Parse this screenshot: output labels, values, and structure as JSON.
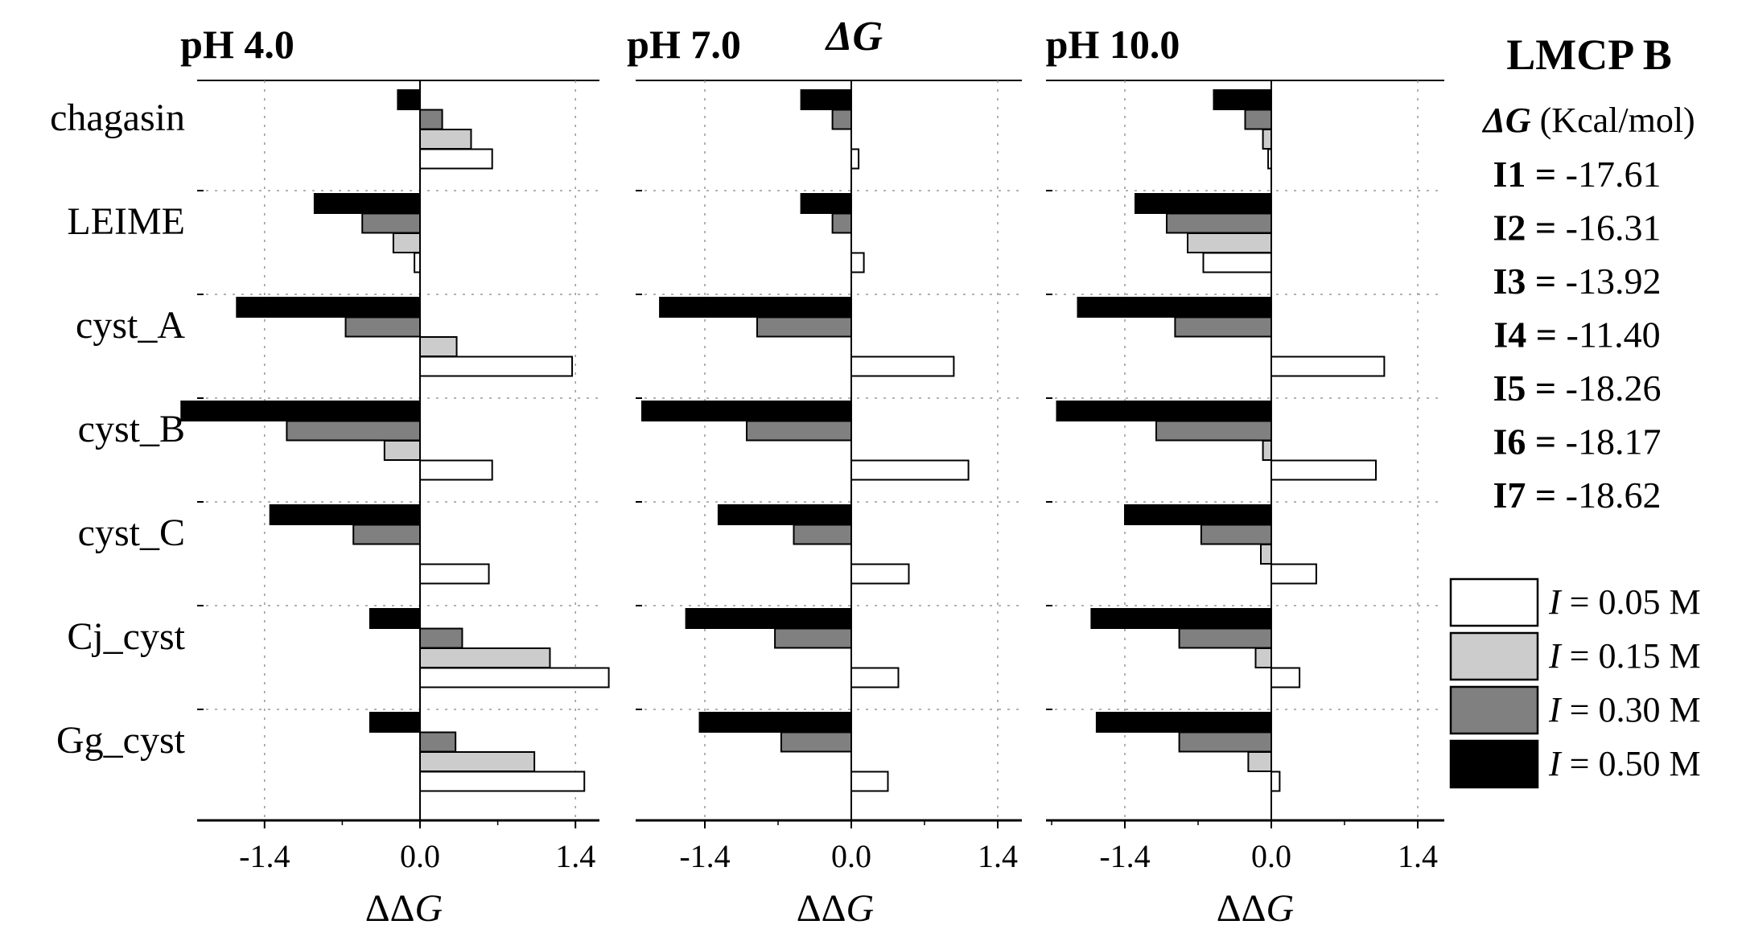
{
  "chart_data": {
    "type": "bar",
    "orientation": "horizontal",
    "title": "ΔG",
    "categories": [
      "chagasin",
      "LEIME",
      "cyst_A",
      "cyst_B",
      "cyst_C",
      "Cj_cyst",
      "Gg_cyst"
    ],
    "xlabel": "ΔΔG",
    "xlim": [
      -2.2,
      1.7
    ],
    "xticks": [
      -1.4,
      0.0,
      1.4
    ],
    "xtick_labels": [
      "-1.4",
      "0.0",
      "1.4"
    ],
    "legend_placement": "right",
    "legend": [
      "I = 0.05 M",
      "I = 0.15 M",
      "I = 0.30 M",
      "I = 0.50 M"
    ],
    "legend_parts": [
      {
        "symbol": "I",
        "text": " = 0.05 M"
      },
      {
        "symbol": "I",
        "text": " = 0.15 M"
      },
      {
        "symbol": "I",
        "text": " = 0.30 M"
      },
      {
        "symbol": "I",
        "text": " = 0.50 M"
      }
    ],
    "series_colors": [
      "#ffffff",
      "#cccccc",
      "#808080",
      "#000000"
    ],
    "panels": [
      {
        "title": "pH 4.0",
        "series": [
          {
            "name": "I = 0.50 M",
            "values": [
              -0.2,
              -0.95,
              -1.65,
              -2.15,
              -1.35,
              -0.45,
              -0.45
            ]
          },
          {
            "name": "I = 0.30 M",
            "values": [
              0.2,
              -0.52,
              -0.67,
              -1.2,
              -0.6,
              0.38,
              0.32
            ]
          },
          {
            "name": "I = 0.15 M",
            "values": [
              0.46,
              -0.24,
              0.33,
              -0.32,
              0.0,
              1.17,
              1.03
            ]
          },
          {
            "name": "I = 0.05 M",
            "values": [
              0.65,
              -0.05,
              1.37,
              0.65,
              0.62,
              1.7,
              1.48
            ]
          }
        ]
      },
      {
        "title": "pH 7.0",
        "series": [
          {
            "name": "I = 0.50 M",
            "values": [
              -0.48,
              -0.48,
              -1.83,
              -2.0,
              -1.27,
              -1.58,
              -1.45
            ]
          },
          {
            "name": "I = 0.30 M",
            "values": [
              -0.18,
              -0.18,
              -0.9,
              -1.0,
              -0.55,
              -0.73,
              -0.67
            ]
          },
          {
            "name": "I = 0.15 M",
            "values": [
              0.0,
              0.0,
              0.0,
              0.0,
              0.0,
              0.0,
              0.0
            ]
          },
          {
            "name": "I = 0.05 M",
            "values": [
              0.07,
              0.12,
              0.98,
              1.12,
              0.55,
              0.45,
              0.35
            ]
          }
        ]
      },
      {
        "title": "pH 10.0",
        "series": [
          {
            "name": "I = 0.50 M",
            "values": [
              -0.55,
              -1.3,
              -1.85,
              -2.05,
              -1.4,
              -1.72,
              -1.67
            ]
          },
          {
            "name": "I = 0.30 M",
            "values": [
              -0.25,
              -1.0,
              -0.92,
              -1.1,
              -0.67,
              -0.88,
              -0.88
            ]
          },
          {
            "name": "I = 0.15 M",
            "values": [
              -0.08,
              -0.8,
              0.0,
              -0.08,
              -0.1,
              -0.15,
              -0.22
            ]
          },
          {
            "name": "I = 0.05 M",
            "values": [
              -0.03,
              -0.65,
              1.08,
              1.0,
              0.43,
              0.27,
              0.08
            ]
          }
        ]
      }
    ]
  },
  "side_panel": {
    "title": "LMCP B",
    "unit_symbol": "ΔG",
    "unit_text": " (Kcal/mol)",
    "values": [
      {
        "label": "I1",
        "eq": " = ",
        "value": "-17.61"
      },
      {
        "label": "I2",
        "eq": " = ",
        "value": "-16.31"
      },
      {
        "label": "I3",
        "eq": " = ",
        "value": "-13.92"
      },
      {
        "label": "I4",
        "eq": " = ",
        "value": "-11.40"
      },
      {
        "label": "I5",
        "eq": " = ",
        "value": "-18.26"
      },
      {
        "label": "I6",
        "eq": " = ",
        "value": "-18.17"
      },
      {
        "label": "I7",
        "eq": " = ",
        "value": "-18.62"
      }
    ]
  }
}
